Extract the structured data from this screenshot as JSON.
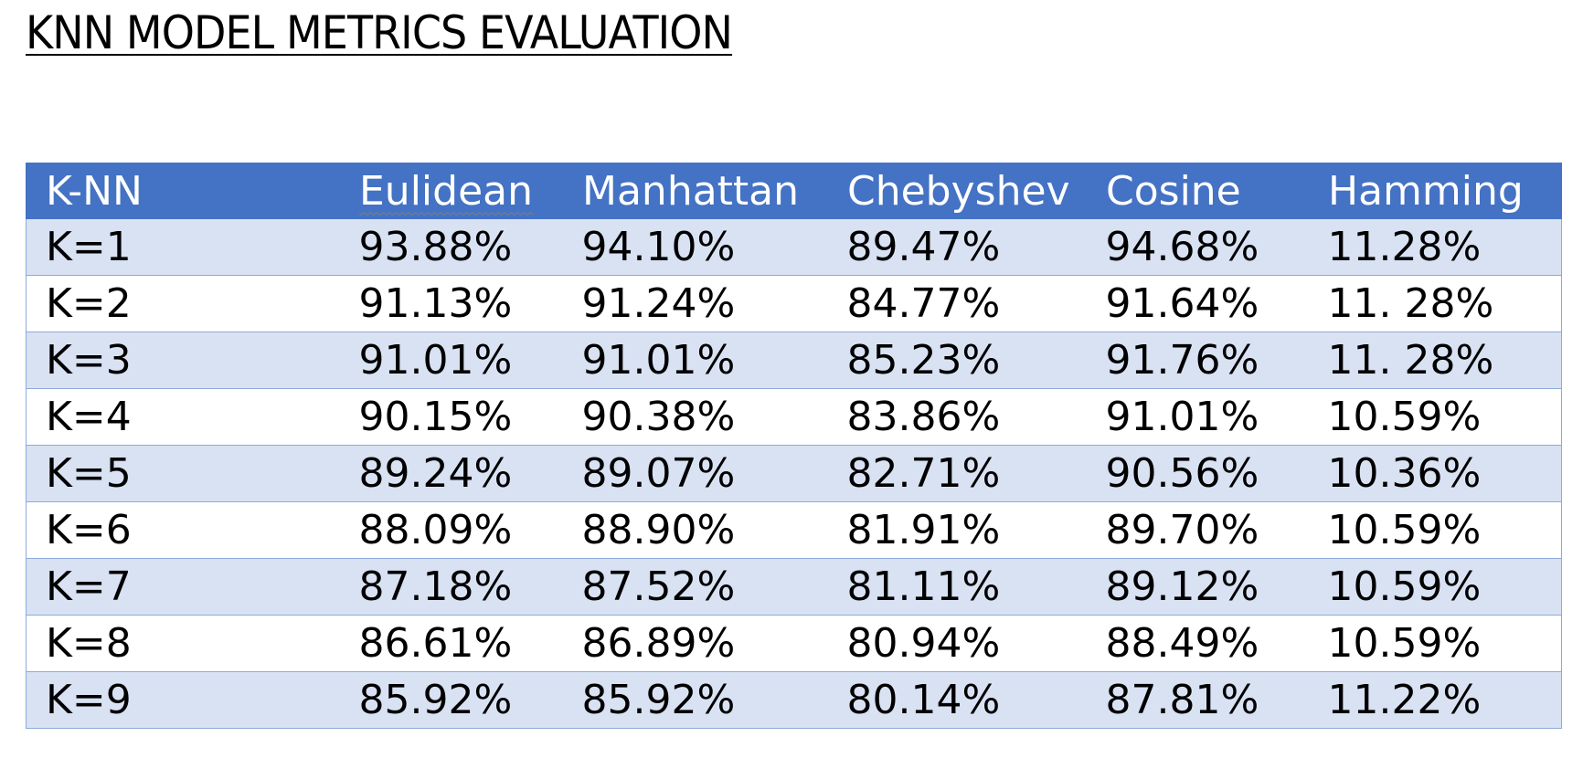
{
  "document": {
    "title": "KNN MODEL METRICS EVALUATION"
  },
  "table": {
    "header_fill": "#4472c4",
    "band_fill": "#d9e2f3",
    "headers": [
      "K-NN",
      "Eulidean",
      "Manhattan",
      "Chebyshev",
      "Cosine",
      "Hamming"
    ],
    "rows": [
      [
        "K=1",
        "93.88%",
        "94.10%",
        "89.47%",
        "94.68%",
        "11.28%"
      ],
      [
        "K=2",
        "91.13%",
        "91.24%",
        "84.77%",
        "91.64%",
        "11. 28%"
      ],
      [
        "K=3",
        "91.01%",
        "91.01%",
        "85.23%",
        "91.76%",
        "11. 28%"
      ],
      [
        "K=4",
        "90.15%",
        "90.38%",
        "83.86%",
        "91.01%",
        "10.59%"
      ],
      [
        "K=5",
        "89.24%",
        "89.07%",
        "82.71%",
        "90.56%",
        "10.36%"
      ],
      [
        "K=6",
        "88.09%",
        "88.90%",
        "81.91%",
        "89.70%",
        "10.59%"
      ],
      [
        "K=7",
        "87.18%",
        "87.52%",
        "81.11%",
        "89.12%",
        "10.59%"
      ],
      [
        "K=8",
        "86.61%",
        "86.89%",
        "80.94%",
        "88.49%",
        "10.59%"
      ],
      [
        "K=9",
        "85.92%",
        "85.92%",
        "80.14%",
        "87.81%",
        "11.22%"
      ]
    ]
  }
}
